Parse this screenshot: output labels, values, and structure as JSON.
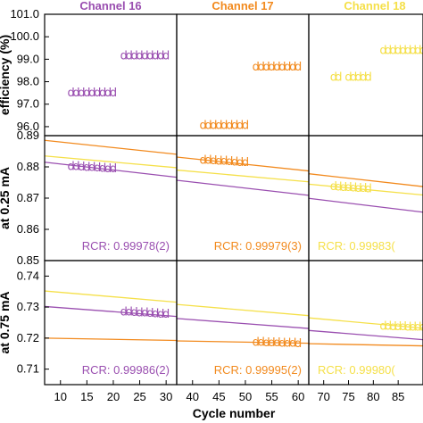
{
  "chart_data": {
    "type": "scatter",
    "xlabel": "Cycle number",
    "marker_glyph": "d",
    "channels": [
      {
        "title": "Channel 16",
        "color": "#9a4fb0",
        "xlim": [
          7,
          32
        ],
        "xticks": [
          "10",
          "15",
          "20",
          "25",
          "30"
        ]
      },
      {
        "title": "Channel 17",
        "color": "#f28a1e",
        "xlim": [
          37,
          62
        ],
        "xticks": [
          "40",
          "45",
          "50",
          "55",
          "60"
        ]
      },
      {
        "title": "Channel 18",
        "color": "#f5e04a",
        "xlim": [
          67,
          90
        ],
        "xticks": [
          "70",
          "75",
          "80",
          "85"
        ]
      }
    ],
    "rows": [
      {
        "ylabel": "efficiency (%)",
        "ylim": [
          95.6,
          101.0
        ],
        "yticks": [
          "101.0",
          "100.0",
          "99.0",
          "98.0",
          "97.0",
          "96.0"
        ],
        "points": [
          {
            "x": [
              12,
              13,
              14,
              15,
              16,
              17,
              18,
              19,
              20
            ],
            "y": [
              97.5,
              97.5,
              97.5,
              97.5,
              97.5,
              97.5,
              97.5,
              97.5,
              97.5
            ]
          },
          {
            "x": [
              22,
              23,
              24,
              25,
              26,
              27,
              28,
              29,
              30
            ],
            "y": [
              99.15,
              99.15,
              99.15,
              99.15,
              99.15,
              99.15,
              99.15,
              99.15,
              99.15
            ]
          },
          {
            "x": [
              42,
              43,
              44,
              45,
              46,
              47,
              48,
              49,
              50
            ],
            "y": [
              96.05,
              96.05,
              96.05,
              96.05,
              96.05,
              96.05,
              96.05,
              96.05,
              96.05
            ]
          },
          {
            "x": [
              52,
              53,
              54,
              55,
              56,
              57,
              58,
              59,
              60
            ],
            "y": [
              98.65,
              98.65,
              98.65,
              98.65,
              98.65,
              98.65,
              98.65,
              98.65,
              98.65
            ]
          },
          {
            "x": [
              72,
              73,
              75,
              76,
              77,
              78,
              79
            ],
            "y": [
              98.2,
              98.2,
              98.2,
              98.2,
              98.2,
              98.2,
              98.2
            ]
          },
          {
            "x": [
              82,
              83,
              84,
              85,
              86,
              87,
              88,
              89,
              90
            ],
            "y": [
              99.4,
              99.4,
              99.4,
              99.4,
              99.4,
              99.4,
              99.4,
              99.4,
              99.4
            ]
          }
        ],
        "fits": [],
        "rcr": []
      },
      {
        "ylabel": "at 0.25 mA",
        "ylim": [
          0.85,
          0.89
        ],
        "yticks": [
          "0.89",
          "0.88",
          "0.87",
          "0.86",
          "0.85"
        ],
        "points": [
          {
            "x": [
              12,
              13,
              14,
              15,
              16,
              17,
              18,
              19,
              20
            ],
            "y": [
              0.8802,
              0.8801,
              0.88,
              0.8799,
              0.8798,
              0.8797,
              0.8796,
              0.8795,
              0.8794
            ]
          },
          {
            "x": [
              42,
              43,
              44,
              45,
              46,
              47,
              48,
              49,
              50
            ],
            "y": [
              0.8822,
              0.8821,
              0.882,
              0.8819,
              0.8818,
              0.8817,
              0.8816,
              0.8815,
              0.8814
            ]
          },
          {
            "x": [
              72,
              73,
              74,
              75,
              76,
              77,
              78,
              79
            ],
            "y": [
              0.8737,
              0.8736,
              0.8735,
              0.8734,
              0.8733,
              0.8732,
              0.8731,
              0.873
            ]
          }
        ],
        "fits": [
          {
            "series": 1,
            "y_at_left": 0.8885,
            "y_at_right": 0.8737
          },
          {
            "series": 2,
            "y_at_left": 0.8835,
            "y_at_right": 0.871
          },
          {
            "series": 0,
            "y_at_left": 0.8815,
            "y_at_right": 0.8655
          }
        ],
        "rcr": [
          "RCR: 0.99978(2)",
          "RCR: 0.99979(3)",
          "RCR: 0.99983("
        ]
      },
      {
        "ylabel": "at 0.75 mA",
        "ylim": [
          0.705,
          0.745
        ],
        "yticks": [
          "0.74",
          "0.73",
          "0.72",
          "0.71"
        ],
        "points": [
          {
            "x": [
              22,
              23,
              24,
              25,
              26,
              27,
              28,
              29,
              30
            ],
            "y": [
              0.7285,
              0.7284,
              0.7283,
              0.7282,
              0.7281,
              0.728,
              0.7279,
              0.7278,
              0.7277
            ]
          },
          {
            "x": [
              52,
              53,
              54,
              55,
              56,
              57,
              58,
              59,
              60
            ],
            "y": [
              0.7186,
              0.7186,
              0.7185,
              0.7185,
              0.7185,
              0.7184,
              0.7184,
              0.7184,
              0.7183
            ]
          },
          {
            "x": [
              82,
              83,
              84,
              85,
              86,
              87,
              88,
              89,
              90
            ],
            "y": [
              0.7238,
              0.7238,
              0.7237,
              0.7237,
              0.7237,
              0.7236,
              0.7236,
              0.7236,
              0.7235
            ]
          }
        ],
        "fits": [
          {
            "series": 2,
            "y_at_left": 0.7352,
            "y_at_right": 0.7232
          },
          {
            "series": 0,
            "y_at_left": 0.7302,
            "y_at_right": 0.7195
          },
          {
            "series": 1,
            "y_at_left": 0.72,
            "y_at_right": 0.7175
          }
        ],
        "rcr": [
          "RCR: 0.99986(2)",
          "RCR: 0.99995(2)",
          "RCR: 0.99980("
        ]
      }
    ]
  }
}
